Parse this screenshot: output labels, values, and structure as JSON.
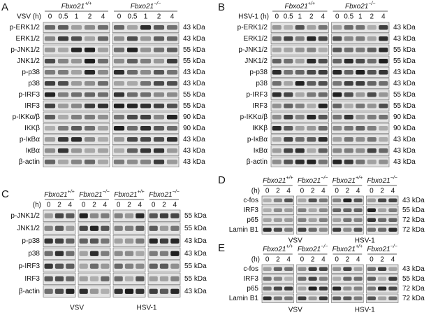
{
  "panels": [
    {
      "letter": "A",
      "time_label": "VSV (h)",
      "groups": [
        {
          "genotype": {
            "name": "Fbxo21",
            "sup": "+/+"
          },
          "times": [
            0,
            0.5,
            1,
            2,
            4
          ]
        },
        {
          "genotype": {
            "name": "Fbxo21",
            "sup": "−/−"
          },
          "times": [
            0,
            0.5,
            1,
            2,
            4
          ]
        }
      ],
      "rows": [
        {
          "label": "p-ERK1/2",
          "kda": "43 kDa"
        },
        {
          "label": "ERK1/2",
          "kda": "43 kDa"
        },
        {
          "label": "p-JNK1/2",
          "kda": "55 kDa"
        },
        {
          "label": "JNK1/2",
          "kda": "55 kDa"
        },
        {
          "label": "p-p38",
          "kda": "43 kDa"
        },
        {
          "label": "p38",
          "kda": "43 kDa"
        },
        {
          "label": "p-IRF3",
          "kda": "55 kDa"
        },
        {
          "label": "IRF3",
          "kda": "55 kDa"
        },
        {
          "label": "p-IKKα/β",
          "kda": "90 kDa"
        },
        {
          "label": "IKKβ",
          "kda": "90 kDa"
        },
        {
          "label": "p-IκBα",
          "kda": "43 kDa"
        },
        {
          "label": "IκBα",
          "kda": "43 kDa"
        },
        {
          "label": "β-actin",
          "kda": "43 kDa"
        }
      ]
    },
    {
      "letter": "B",
      "time_label": "HSV-1 (h)",
      "groups": [
        {
          "genotype": {
            "name": "Fbxo21",
            "sup": "+/+"
          },
          "times": [
            0,
            0.5,
            1,
            2,
            4
          ]
        },
        {
          "genotype": {
            "name": "Fbxo21",
            "sup": "−/−"
          },
          "times": [
            0,
            0.5,
            1,
            2,
            4
          ]
        }
      ],
      "rows": [
        {
          "label": "p-ERK1/2",
          "kda": "43 kDa"
        },
        {
          "label": "ERK1/2",
          "kda": "43 kDa"
        },
        {
          "label": "p-JNK1/2",
          "kda": "55 kDa"
        },
        {
          "label": "JNK1/2",
          "kda": "55 kDa"
        },
        {
          "label": "p-p38",
          "kda": "43 kDa"
        },
        {
          "label": "p38",
          "kda": "43 kDa"
        },
        {
          "label": "p-IRF3",
          "kda": "55 kDa"
        },
        {
          "label": "IRF3",
          "kda": "55 kDa"
        },
        {
          "label": "p-IKKα/β",
          "kda": "90 kDa"
        },
        {
          "label": "IKKβ",
          "kda": "90 kDa"
        },
        {
          "label": "p-IκBα",
          "kda": "43 kDa"
        },
        {
          "label": "IκBα",
          "kda": "43 kDa"
        },
        {
          "label": "β-actin",
          "kda": "43 kDa"
        }
      ]
    },
    {
      "letter": "C",
      "time_label": "(h)",
      "groups": [
        {
          "genotype": {
            "name": "Fbxo21",
            "sup": "+/+"
          },
          "times": [
            0,
            2,
            4
          ]
        },
        {
          "genotype": {
            "name": "Fbxo21",
            "sup": "−/−"
          },
          "times": [
            0,
            2,
            4
          ]
        },
        {
          "genotype": {
            "name": "Fbxo21",
            "sup": "+/+"
          },
          "times": [
            0,
            2,
            4
          ]
        },
        {
          "genotype": {
            "name": "Fbxo21",
            "sup": "−/−"
          },
          "times": [
            0,
            2,
            4
          ]
        }
      ],
      "rows": [
        {
          "label": "p-JNK1/2",
          "kda": "55 kDa"
        },
        {
          "label": "JNK1/2",
          "kda": "55 kDa"
        },
        {
          "label": "p-p38",
          "kda": "43 kDa"
        },
        {
          "label": "p38",
          "kda": "43 kDa"
        },
        {
          "label": "p-IRF3",
          "kda": "55 kDa"
        },
        {
          "label": "IRF3",
          "kda": "55 kDa"
        },
        {
          "label": "β-actin",
          "kda": "43 kDa"
        }
      ],
      "conditions": [
        "VSV",
        "HSV-1"
      ]
    },
    {
      "letter": "D",
      "time_label": "(h)",
      "groups": [
        {
          "genotype": {
            "name": "Fbxo21",
            "sup": "+/+"
          },
          "times": [
            0,
            2,
            4
          ]
        },
        {
          "genotype": {
            "name": "Fbxo21",
            "sup": "−/−"
          },
          "times": [
            0,
            2,
            4
          ]
        },
        {
          "genotype": {
            "name": "Fbxo21",
            "sup": "+/+"
          },
          "times": [
            0,
            2,
            4
          ]
        },
        {
          "genotype": {
            "name": "Fbxo21",
            "sup": "−/−"
          },
          "times": [
            0,
            2,
            4
          ]
        }
      ],
      "rows": [
        {
          "label": "c-fos",
          "kda": "43 kDa"
        },
        {
          "label": "IRF3",
          "kda": "55 kDa"
        },
        {
          "label": "p65",
          "kda": "72 kDa"
        },
        {
          "label": "Lamin B1",
          "kda": "72 kDa"
        }
      ],
      "conditions": [
        "VSV",
        "HSV-1"
      ]
    },
    {
      "letter": "E",
      "time_label": "(h)",
      "groups": [
        {
          "genotype": {
            "name": "Fbxo21",
            "sup": "+/+"
          },
          "times": [
            0,
            2,
            4
          ]
        },
        {
          "genotype": {
            "name": "Fbxo21",
            "sup": "−/−"
          },
          "times": [
            0,
            2,
            4
          ]
        },
        {
          "genotype": {
            "name": "Fbxo21",
            "sup": "+/+"
          },
          "times": [
            0,
            2,
            4
          ]
        },
        {
          "genotype": {
            "name": "Fbxo21",
            "sup": "−/−"
          },
          "times": [
            0,
            2,
            4
          ]
        }
      ],
      "rows": [
        {
          "label": "c-fos",
          "kda": "43 kDa"
        },
        {
          "label": "IRF3",
          "kda": "55 kDa"
        },
        {
          "label": "p65",
          "kda": "72 kDa"
        },
        {
          "label": "Lamin B1",
          "kda": "72 kDa"
        }
      ],
      "conditions": [
        "VSV",
        "HSV-1"
      ]
    }
  ]
}
